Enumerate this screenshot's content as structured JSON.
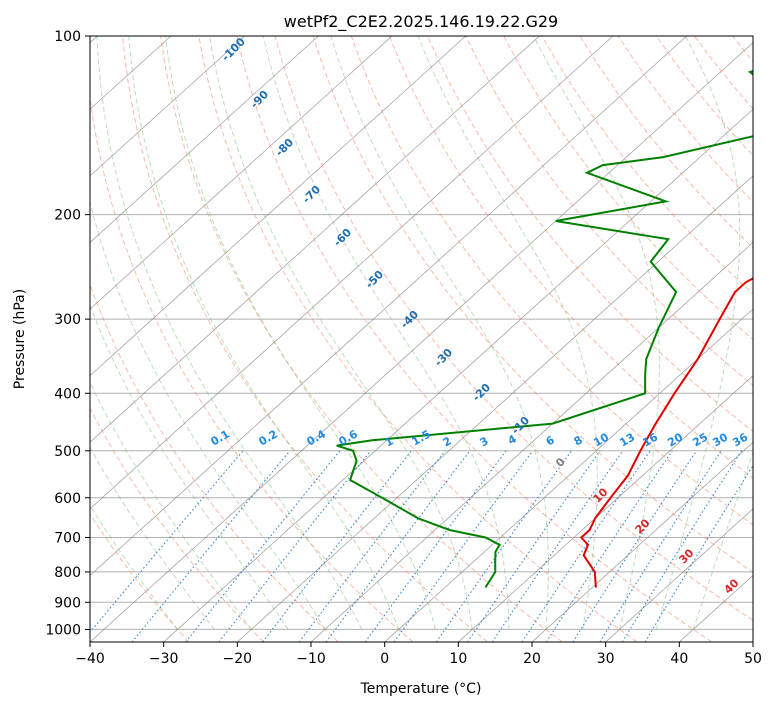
{
  "chart_data": {
    "type": "line",
    "title": "wetPf2_C2E2.2025.146.19.22.G29",
    "xlabel": "Temperature (°C)",
    "ylabel": "Pressure (hPa)",
    "xlim": [
      -40,
      50
    ],
    "ylim": [
      1050,
      100
    ],
    "y_scale": "log",
    "grid": true,
    "x_ticks": [
      -40,
      -30,
      -20,
      -10,
      0,
      10,
      20,
      30,
      40,
      50
    ],
    "y_ticks": [
      100,
      200,
      300,
      400,
      500,
      600,
      700,
      800,
      900,
      1000
    ],
    "skew": "skew-T",
    "series": [
      {
        "color": "#e00000",
        "points": [
          [
            20.5,
            850
          ],
          [
            18,
            800
          ],
          [
            14,
            750
          ],
          [
            13,
            720
          ],
          [
            11,
            700
          ],
          [
            11,
            680
          ],
          [
            10,
            650
          ],
          [
            9,
            600
          ],
          [
            8,
            550
          ],
          [
            6,
            500
          ],
          [
            4,
            450
          ],
          [
            2,
            400
          ],
          [
            0,
            350
          ],
          [
            -3,
            300
          ],
          [
            -5,
            270
          ],
          [
            -5,
            260
          ],
          [
            -4,
            250
          ],
          [
            -5,
            230
          ],
          [
            -6,
            210
          ],
          [
            -8,
            200
          ],
          [
            -11,
            180
          ],
          [
            -14,
            160
          ],
          [
            -17,
            150
          ],
          [
            -20,
            140
          ],
          [
            -23,
            125
          ],
          [
            -28,
            115
          ],
          [
            -31,
            110
          ],
          [
            -35,
            100
          ]
        ]
      },
      {
        "color": "#008000",
        "points": [
          [
            5.5,
            850
          ],
          [
            4.5,
            800
          ],
          [
            3,
            770
          ],
          [
            1.5,
            740
          ],
          [
            1,
            720
          ],
          [
            -2,
            700
          ],
          [
            -8,
            680
          ],
          [
            -14,
            650
          ],
          [
            -22,
            600
          ],
          [
            -29,
            560
          ],
          [
            -30,
            540
          ],
          [
            -31,
            520
          ],
          [
            -33,
            500
          ],
          [
            -36,
            490
          ],
          [
            -32,
            480
          ],
          [
            -10,
            450
          ],
          [
            -2,
            400
          ],
          [
            -5,
            370
          ],
          [
            -7,
            350
          ],
          [
            -10,
            310
          ],
          [
            -13,
            270
          ],
          [
            -21,
            240
          ],
          [
            -22,
            220
          ],
          [
            -40,
            205
          ],
          [
            -28,
            190
          ],
          [
            -43,
            170
          ],
          [
            -42,
            165
          ],
          [
            -35,
            160
          ],
          [
            -24,
            145
          ],
          [
            -29,
            125
          ],
          [
            -36,
            115
          ],
          [
            -33,
            110
          ],
          [
            -25,
            100
          ]
        ]
      }
    ],
    "dry_adiabat_labels": [
      "-100",
      "-90",
      "-80",
      "-70",
      "-60",
      "-50",
      "-40",
      "-30",
      "-20",
      "-10"
    ],
    "mixing_ratio_labels": [
      "0.1",
      "0.2",
      "0.4",
      "0.6",
      "1",
      "1.5",
      "2",
      "3",
      "4",
      "6",
      "8",
      "10",
      "13",
      "16",
      "20",
      "25",
      "30",
      "36"
    ],
    "moist_adiabat_labels": [
      "0",
      "10",
      "20",
      "30",
      "40"
    ],
    "colors": {
      "temperature": "#e00000",
      "dewpoint": "#008000",
      "dry_adiabat": "#fa8060",
      "moist_adiabat": "#6ab46a",
      "mixing_ratio": "#1f77d4",
      "isotherm": "#7f7f7f",
      "mixing_label": "#1f8ae0",
      "dry_label": "#1f6fb0",
      "moist_label": "#d62728",
      "zero_label": "#808080"
    }
  }
}
